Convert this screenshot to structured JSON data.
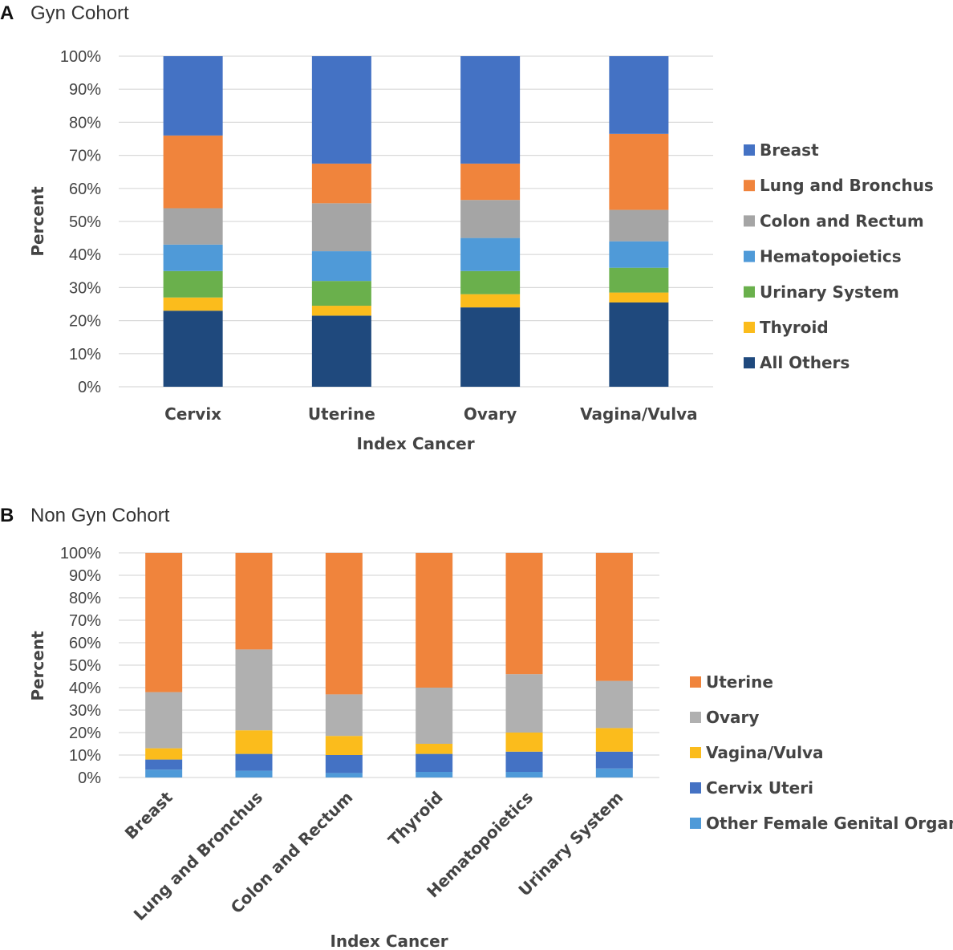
{
  "chart_data": [
    {
      "panel": "A",
      "title": "Gyn Cohort",
      "type": "bar",
      "stacked": true,
      "percent": true,
      "xlabel": "Index Cancer",
      "ylabel": "Percent",
      "ylim": [
        0,
        100
      ],
      "yticks": [
        "0%",
        "10%",
        "20%",
        "30%",
        "40%",
        "50%",
        "60%",
        "70%",
        "80%",
        "90%",
        "100%"
      ],
      "categories": [
        "Cervix",
        "Uterine",
        "Ovary",
        "Vagina/Vulva"
      ],
      "legend_position": "right",
      "series": [
        {
          "name": "All Others",
          "color": "#1f497d",
          "values": [
            23,
            21.5,
            24,
            25.5
          ]
        },
        {
          "name": "Thyroid",
          "color": "#fbbc1c",
          "values": [
            4,
            3,
            4,
            3
          ]
        },
        {
          "name": "Urinary System",
          "color": "#6ab04c",
          "values": [
            8,
            7.5,
            7,
            7.5
          ]
        },
        {
          "name": "Hematopoietics",
          "color": "#4f9ad8",
          "values": [
            8,
            9,
            10,
            8
          ]
        },
        {
          "name": "Colon and Rectum",
          "color": "#a5a5a5",
          "values": [
            11,
            14.5,
            11.5,
            9.5
          ]
        },
        {
          "name": "Lung and Bronchus",
          "color": "#f0843c",
          "values": [
            22,
            12,
            11,
            23
          ]
        },
        {
          "name": "Breast",
          "color": "#4472c4",
          "values": [
            24,
            32.5,
            32.5,
            23.5
          ]
        }
      ],
      "legend_order": [
        "Breast",
        "Lung and Bronchus",
        "Colon and Rectum",
        "Hematopoietics",
        "Urinary System",
        "Thyroid",
        "All Others"
      ]
    },
    {
      "panel": "B",
      "title": "Non Gyn Cohort",
      "type": "bar",
      "stacked": true,
      "percent": true,
      "xlabel": "Index Cancer",
      "ylabel": "Percent",
      "ylim": [
        0,
        100
      ],
      "yticks": [
        "0%",
        "10%",
        "20%",
        "30%",
        "40%",
        "50%",
        "60%",
        "70%",
        "80%",
        "90%",
        "100%"
      ],
      "categories": [
        "Breast",
        "Lung and Bronchus",
        "Colon and Rectum",
        "Thyroid",
        "Hematopoietics",
        "Urinary System"
      ],
      "legend_position": "right",
      "series": [
        {
          "name": "Other Female Genital Organs",
          "color": "#4f9ad8",
          "values": [
            3.5,
            3,
            2,
            2.5,
            2.5,
            4
          ]
        },
        {
          "name": "Cervix Uteri",
          "color": "#4472c4",
          "values": [
            4.5,
            7.5,
            8,
            8,
            9,
            7.5
          ]
        },
        {
          "name": "Vagina/Vulva",
          "color": "#fbbc1c",
          "values": [
            5,
            10.5,
            8.5,
            4.5,
            8.5,
            10.5
          ]
        },
        {
          "name": "Ovary",
          "color": "#b0b0b0",
          "values": [
            25,
            36,
            18.5,
            25,
            26,
            21
          ]
        },
        {
          "name": "Uterine",
          "color": "#f0843c",
          "values": [
            62,
            43,
            63,
            60,
            54,
            57
          ]
        }
      ],
      "legend_order": [
        "Uterine",
        "Ovary",
        "Vagina/Vulva",
        "Cervix Uteri",
        "Other Female Genital Organs"
      ]
    }
  ]
}
